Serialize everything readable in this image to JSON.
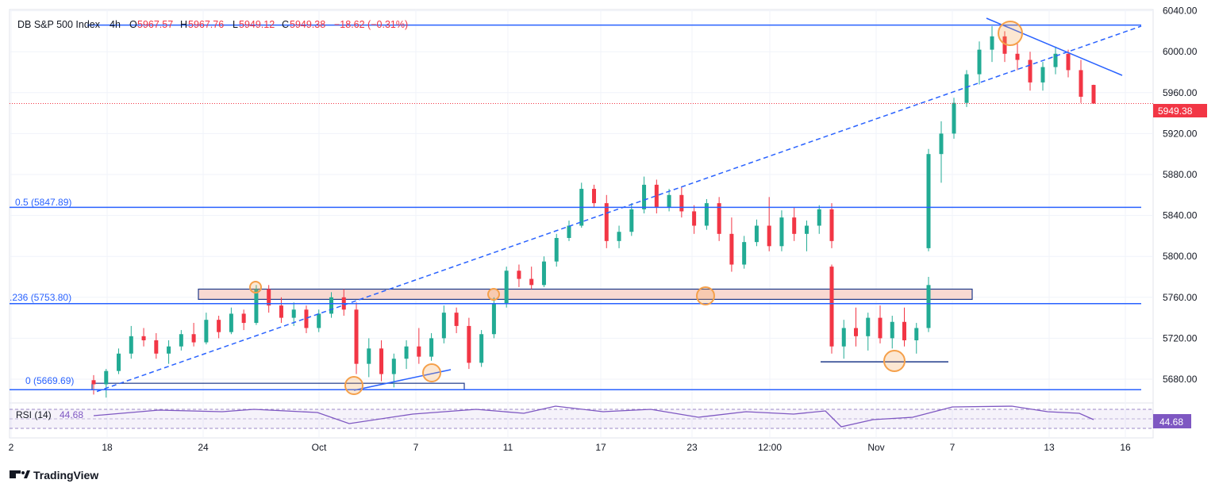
{
  "header": {
    "symbol": "DB S&P 500 Index",
    "interval": "4h",
    "open_label": "O",
    "open": "5967.57",
    "high_label": "H",
    "high": "5967.76",
    "low_label": "L",
    "low": "5949.12",
    "close_label": "C",
    "close": "5949.38",
    "change": "−18.62 (−0.31%)"
  },
  "fib_labels": {
    "fib_05": "0.5 (5847.89)",
    "fib_0236": ".236 (5753.80)",
    "fib_0": "0 (5669.69)"
  },
  "rsi": {
    "label": "RSI (14)",
    "value": "44.68",
    "badge": "44.68"
  },
  "price_badge": "5949.38",
  "branding": "TradingView",
  "colors": {
    "up": "#22ab94",
    "down": "#f23645",
    "accent_line": "#2962ff",
    "zone_fill": "#f8d9d2",
    "circle": "#f5a04a",
    "rsi_line": "#7e57c2"
  },
  "chart_data": {
    "type": "candlestick",
    "y_axis_ticks": [
      5680,
      5720,
      5760,
      5800,
      5840,
      5880,
      5920,
      5960,
      6000,
      6040
    ],
    "ylim": [
      5655,
      6050
    ],
    "x_axis_ticks": [
      "2",
      "18",
      "24",
      "Oct",
      "7",
      "11",
      "17",
      "23",
      "12:00",
      "Nov",
      "7",
      "13",
      "16"
    ],
    "last_price": 5949.38,
    "levels": [
      {
        "name": "top",
        "value": 6026
      },
      {
        "name": "0.5",
        "value": 5847.89
      },
      {
        "name": "0.236",
        "value": 5753.8
      },
      {
        "name": "0",
        "value": 5669.69
      }
    ],
    "rsi_value": 44.68,
    "candles_approx": [
      [
        5679,
        5684,
        5665,
        5675
      ],
      [
        5675,
        5690,
        5662,
        5688
      ],
      [
        5688,
        5710,
        5685,
        5705
      ],
      [
        5705,
        5732,
        5700,
        5722
      ],
      [
        5722,
        5730,
        5712,
        5718
      ],
      [
        5718,
        5725,
        5700,
        5705
      ],
      [
        5705,
        5718,
        5695,
        5712
      ],
      [
        5712,
        5728,
        5708,
        5724
      ],
      [
        5724,
        5735,
        5712,
        5716
      ],
      [
        5716,
        5745,
        5714,
        5738
      ],
      [
        5738,
        5742,
        5720,
        5726
      ],
      [
        5726,
        5750,
        5724,
        5744
      ],
      [
        5744,
        5748,
        5728,
        5735
      ],
      [
        5735,
        5772,
        5733,
        5768
      ],
      [
        5768,
        5772,
        5745,
        5752
      ],
      [
        5752,
        5760,
        5735,
        5740
      ],
      [
        5740,
        5755,
        5732,
        5748
      ],
      [
        5748,
        5752,
        5725,
        5730
      ],
      [
        5730,
        5748,
        5726,
        5744
      ],
      [
        5744,
        5765,
        5740,
        5760
      ],
      [
        5760,
        5768,
        5742,
        5748
      ],
      [
        5748,
        5755,
        5685,
        5695
      ],
      [
        5695,
        5720,
        5682,
        5710
      ],
      [
        5710,
        5718,
        5678,
        5685
      ],
      [
        5685,
        5705,
        5672,
        5700
      ],
      [
        5700,
        5718,
        5690,
        5712
      ],
      [
        5712,
        5730,
        5695,
        5702
      ],
      [
        5702,
        5725,
        5698,
        5720
      ],
      [
        5720,
        5752,
        5715,
        5745
      ],
      [
        5745,
        5750,
        5725,
        5732
      ],
      [
        5732,
        5740,
        5690,
        5696
      ],
      [
        5696,
        5728,
        5692,
        5724
      ],
      [
        5724,
        5760,
        5720,
        5754
      ],
      [
        5754,
        5790,
        5750,
        5786
      ],
      [
        5786,
        5792,
        5770,
        5778
      ],
      [
        5778,
        5790,
        5768,
        5772
      ],
      [
        5772,
        5800,
        5770,
        5795
      ],
      [
        5795,
        5822,
        5790,
        5818
      ],
      [
        5818,
        5835,
        5815,
        5830
      ],
      [
        5830,
        5872,
        5828,
        5866
      ],
      [
        5866,
        5870,
        5848,
        5852
      ],
      [
        5852,
        5860,
        5808,
        5815
      ],
      [
        5815,
        5830,
        5808,
        5824
      ],
      [
        5824,
        5852,
        5820,
        5846
      ],
      [
        5846,
        5878,
        5842,
        5870
      ],
      [
        5870,
        5875,
        5842,
        5848
      ],
      [
        5848,
        5866,
        5844,
        5860
      ],
      [
        5860,
        5868,
        5838,
        5844
      ],
      [
        5844,
        5850,
        5822,
        5830
      ],
      [
        5830,
        5856,
        5826,
        5852
      ],
      [
        5852,
        5858,
        5815,
        5822
      ],
      [
        5822,
        5838,
        5785,
        5792
      ],
      [
        5792,
        5820,
        5788,
        5814
      ],
      [
        5814,
        5836,
        5810,
        5830
      ],
      [
        5830,
        5858,
        5805,
        5810
      ],
      [
        5810,
        5845,
        5805,
        5838
      ],
      [
        5838,
        5848,
        5815,
        5822
      ],
      [
        5822,
        5835,
        5805,
        5830
      ],
      [
        5830,
        5850,
        5822,
        5846
      ],
      [
        5846,
        5852,
        5808,
        5815
      ],
      [
        5790,
        5792,
        5705,
        5712
      ],
      [
        5712,
        5738,
        5700,
        5730
      ],
      [
        5730,
        5750,
        5712,
        5722
      ],
      [
        5722,
        5745,
        5708,
        5740
      ],
      [
        5740,
        5752,
        5715,
        5720
      ],
      [
        5720,
        5742,
        5710,
        5736
      ],
      [
        5736,
        5750,
        5712,
        5718
      ],
      [
        5718,
        5735,
        5705,
        5730
      ],
      [
        5730,
        5780,
        5726,
        5772
      ],
      [
        5808,
        5905,
        5805,
        5900
      ],
      [
        5900,
        5932,
        5872,
        5920
      ],
      [
        5920,
        5955,
        5915,
        5950
      ],
      [
        5950,
        5982,
        5946,
        5978
      ],
      [
        5978,
        6010,
        5968,
        6002
      ],
      [
        6002,
        6025,
        5990,
        6015
      ],
      [
        6015,
        6020,
        5990,
        5998
      ],
      [
        5998,
        6008,
        5982,
        5992
      ],
      [
        5992,
        6000,
        5962,
        5970
      ],
      [
        5970,
        5990,
        5962,
        5985
      ],
      [
        5985,
        6005,
        5978,
        5998
      ],
      [
        5998,
        6002,
        5975,
        5982
      ],
      [
        5982,
        5992,
        5950,
        5956
      ],
      [
        5967.57,
        5967.76,
        5949.12,
        5949.38
      ]
    ]
  }
}
